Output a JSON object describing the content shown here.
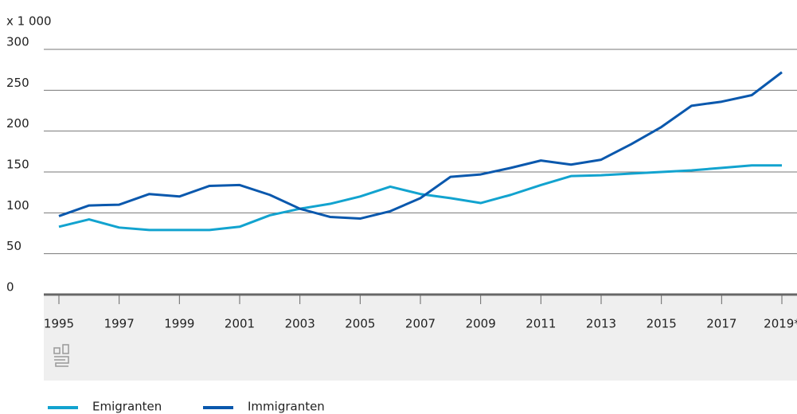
{
  "chart_data": {
    "type": "line",
    "unit_label": "x 1 000",
    "categories": [
      "1995",
      null,
      "1997",
      null,
      "1999",
      null,
      "2001",
      null,
      "2003",
      null,
      "2005",
      null,
      "2007",
      null,
      "2009",
      null,
      "2011",
      null,
      "2013",
      null,
      "2015",
      null,
      "2017",
      null,
      "2019*"
    ],
    "series": [
      {
        "name": "Emigranten",
        "color": "#12a3cf",
        "values": [
          83,
          92,
          82,
          79,
          79,
          79,
          83,
          97,
          105,
          111,
          120,
          132,
          123,
          118,
          112,
          122,
          134,
          145,
          146,
          148,
          150,
          152,
          155,
          158,
          158
        ]
      },
      {
        "name": "Immigranten",
        "color": "#0a58ad",
        "values": [
          96,
          109,
          110,
          123,
          120,
          133,
          134,
          122,
          105,
          95,
          93,
          102,
          118,
          144,
          147,
          155,
          164,
          159,
          165,
          184,
          205,
          231,
          236,
          244,
          272
        ]
      }
    ],
    "ylim": [
      0,
      300
    ],
    "yticks": [
      0,
      50,
      100,
      150,
      200,
      250,
      300
    ],
    "grid": true
  }
}
